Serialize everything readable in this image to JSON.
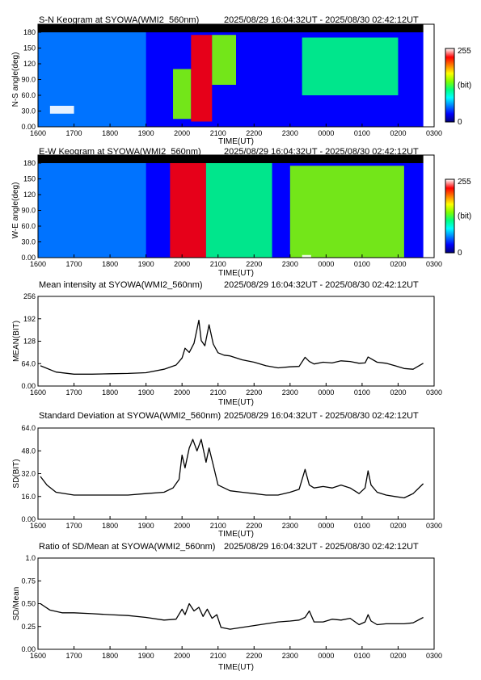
{
  "colors": {
    "keogram_scale": [
      "#00007a",
      "#0000ff",
      "#0080ff",
      "#00ffff",
      "#00ff80",
      "#80ff00",
      "#ffff00",
      "#ff8000",
      "#ff0000",
      "#ffffff"
    ],
    "line": "#000000",
    "axes": "#000000"
  },
  "colorbar": {
    "max_label": "255",
    "unit_label": "(bit)",
    "min_label": "0"
  },
  "chart_data": [
    {
      "type": "heatmap",
      "title": "S-N Keogram at SYOWA(WMI2_560nm)",
      "time_range": "2025/08/29 16:04:32UT - 2025/08/30 02:42:12UT",
      "xlabel": "TIME(UT)",
      "ylabel": "N-S angle(deg)",
      "x_ticks": [
        "1600",
        "1700",
        "1800",
        "1900",
        "2000",
        "2100",
        "2200",
        "2300",
        "0000",
        "0100",
        "0200",
        "0300"
      ],
      "y_ticks": [
        "0.00",
        "30.0",
        "60.0",
        "90.0",
        "120",
        "150",
        "180"
      ],
      "ylim": [
        0,
        180
      ],
      "value_range": [
        0,
        255
      ],
      "bands": [
        {
          "t0": "16:00",
          "t1": "19:00",
          "angle0": 0,
          "angle1": 180,
          "level": 45
        },
        {
          "t0": "16:20",
          "t1": "17:00",
          "angle0": 25,
          "angle1": 40,
          "level": 250
        },
        {
          "t0": "19:45",
          "t1": "20:15",
          "angle0": 15,
          "angle1": 110,
          "level": 140
        },
        {
          "t0": "20:15",
          "t1": "20:50",
          "angle0": 10,
          "angle1": 175,
          "level": 240
        },
        {
          "t0": "20:50",
          "t1": "21:30",
          "angle0": 80,
          "angle1": 175,
          "level": 130
        },
        {
          "t0": "23:20",
          "t1": "02:00",
          "angle0": 60,
          "angle1": 170,
          "level": 120
        },
        {
          "t0": "00:00",
          "t1": "02:30",
          "angle0": 0,
          "angle1": 50,
          "level": 30
        }
      ]
    },
    {
      "type": "heatmap",
      "title": "E-W Keogram at SYOWA(WMI2_560nm)",
      "time_range": "2025/08/29 16:04:32UT - 2025/08/30 02:42:12UT",
      "xlabel": "TIME(UT)",
      "ylabel": "W-E angle(deg)",
      "x_ticks": [
        "1600",
        "1700",
        "1800",
        "1900",
        "2000",
        "2100",
        "2200",
        "2300",
        "0000",
        "0100",
        "0200",
        "0300"
      ],
      "y_ticks": [
        "0.00",
        "30.0",
        "60.0",
        "90.0",
        "120",
        "150",
        "180"
      ],
      "ylim": [
        0,
        180
      ],
      "value_range": [
        0,
        255
      ],
      "bands": [
        {
          "t0": "16:00",
          "t1": "19:00",
          "angle0": 0,
          "angle1": 180,
          "level": 45
        },
        {
          "t0": "19:40",
          "t1": "20:40",
          "angle0": 0,
          "angle1": 180,
          "level": 235
        },
        {
          "t0": "20:40",
          "t1": "22:30",
          "angle0": 0,
          "angle1": 180,
          "level": 125
        },
        {
          "t0": "23:00",
          "t1": "02:10",
          "angle0": 0,
          "angle1": 175,
          "level": 130
        },
        {
          "t0": "23:20",
          "t1": "23:35",
          "angle0": 0,
          "angle1": 5,
          "level": 250
        }
      ]
    },
    {
      "type": "line",
      "title": "Mean intensity at SYOWA(WMI2_560nm)",
      "time_range": "2025/08/29 16:04:32UT - 2025/08/30 02:42:12UT",
      "xlabel": "TIME(UT)",
      "ylabel": "MEAN(BIT)",
      "x_ticks": [
        "1600",
        "1700",
        "1800",
        "1900",
        "2000",
        "2100",
        "2200",
        "2300",
        "0000",
        "0100",
        "0200",
        "0300"
      ],
      "y_ticks": [
        "0.00",
        "64.0",
        "128",
        "192",
        "256"
      ],
      "ylim": [
        0,
        256
      ],
      "x": [
        "16:04",
        "16:30",
        "17:00",
        "17:30",
        "18:00",
        "18:30",
        "19:00",
        "19:30",
        "19:50",
        "20:00",
        "20:05",
        "20:12",
        "20:20",
        "20:28",
        "20:32",
        "20:38",
        "20:45",
        "20:52",
        "21:00",
        "21:10",
        "21:20",
        "21:40",
        "22:00",
        "22:20",
        "22:40",
        "23:00",
        "23:15",
        "23:25",
        "23:32",
        "23:40",
        "23:55",
        "00:10",
        "00:25",
        "00:40",
        "00:55",
        "01:05",
        "01:10",
        "01:15",
        "01:25",
        "01:40",
        "01:55",
        "02:10",
        "02:25",
        "02:42"
      ],
      "series": [
        {
          "values": [
            58,
            40,
            34,
            34,
            35,
            36,
            38,
            48,
            60,
            80,
            108,
            96,
            122,
            188,
            130,
            115,
            175,
            120,
            95,
            88,
            86,
            75,
            68,
            58,
            52,
            55,
            56,
            82,
            70,
            63,
            68,
            66,
            72,
            70,
            65,
            66,
            83,
            78,
            68,
            65,
            58,
            50,
            48,
            65
          ]
        }
      ]
    },
    {
      "type": "line",
      "title": "Standard Deviation at SYOWA(WMI2_560nm)",
      "time_range": "2025/08/29 16:04:32UT - 2025/08/30 02:42:12UT",
      "xlabel": "TIME(UT)",
      "ylabel": "SD(BIT)",
      "x_ticks": [
        "1600",
        "1700",
        "1800",
        "1900",
        "2000",
        "2100",
        "2200",
        "2300",
        "0000",
        "0100",
        "0200",
        "0300"
      ],
      "y_ticks": [
        "0.00",
        "16.0",
        "32.0",
        "48.0",
        "64.0"
      ],
      "ylim": [
        0,
        64
      ],
      "x": [
        "16:04",
        "16:15",
        "16:30",
        "17:00",
        "17:30",
        "18:00",
        "18:30",
        "19:00",
        "19:30",
        "19:45",
        "19:55",
        "20:00",
        "20:05",
        "20:12",
        "20:18",
        "20:25",
        "20:32",
        "20:40",
        "20:45",
        "20:52",
        "21:00",
        "21:20",
        "21:40",
        "22:00",
        "22:20",
        "22:40",
        "23:00",
        "23:15",
        "23:25",
        "23:32",
        "23:40",
        "23:55",
        "00:10",
        "00:25",
        "00:40",
        "00:55",
        "01:05",
        "01:10",
        "01:15",
        "01:25",
        "01:40",
        "01:55",
        "02:10",
        "02:25",
        "02:42"
      ],
      "series": [
        {
          "values": [
            30,
            24,
            19,
            17,
            17,
            17,
            17,
            18,
            19,
            22,
            28,
            45,
            36,
            50,
            56,
            48,
            56,
            40,
            50,
            38,
            24,
            20,
            19,
            18,
            17,
            17,
            19,
            21,
            35,
            24,
            22,
            23,
            22,
            24,
            22,
            18,
            22,
            34,
            24,
            19,
            17,
            16,
            15,
            18,
            25
          ]
        }
      ]
    },
    {
      "type": "line",
      "title": "Ratio of SD/Mean at SYOWA(WMI2_560nm)",
      "time_range": "2025/08/29 16:04:32UT - 2025/08/30 02:42:12UT",
      "xlabel": "TIME(UT)",
      "ylabel": "SD/Mean",
      "x_ticks": [
        "1600",
        "1700",
        "1800",
        "1900",
        "2000",
        "2100",
        "2200",
        "2300",
        "0000",
        "0100",
        "0200",
        "0300"
      ],
      "y_ticks": [
        "0.00",
        "0.25",
        "0.50",
        "0.75",
        "1.0"
      ],
      "ylim": [
        0,
        1
      ],
      "x": [
        "16:04",
        "16:20",
        "16:40",
        "17:00",
        "17:30",
        "18:00",
        "18:30",
        "19:00",
        "19:30",
        "19:50",
        "20:00",
        "20:05",
        "20:12",
        "20:20",
        "20:28",
        "20:35",
        "20:42",
        "20:50",
        "20:58",
        "21:05",
        "21:20",
        "21:40",
        "22:00",
        "22:20",
        "22:40",
        "23:00",
        "23:15",
        "23:25",
        "23:32",
        "23:40",
        "23:55",
        "00:10",
        "00:25",
        "00:40",
        "00:55",
        "01:05",
        "01:10",
        "01:15",
        "01:25",
        "01:40",
        "01:55",
        "02:10",
        "02:25",
        "02:42"
      ],
      "series": [
        {
          "values": [
            0.5,
            0.43,
            0.4,
            0.4,
            0.39,
            0.38,
            0.37,
            0.35,
            0.32,
            0.33,
            0.44,
            0.38,
            0.5,
            0.42,
            0.46,
            0.36,
            0.44,
            0.34,
            0.38,
            0.24,
            0.22,
            0.24,
            0.26,
            0.28,
            0.3,
            0.31,
            0.32,
            0.35,
            0.42,
            0.3,
            0.3,
            0.33,
            0.32,
            0.34,
            0.27,
            0.3,
            0.38,
            0.31,
            0.27,
            0.28,
            0.28,
            0.28,
            0.29,
            0.35
          ]
        }
      ]
    }
  ]
}
